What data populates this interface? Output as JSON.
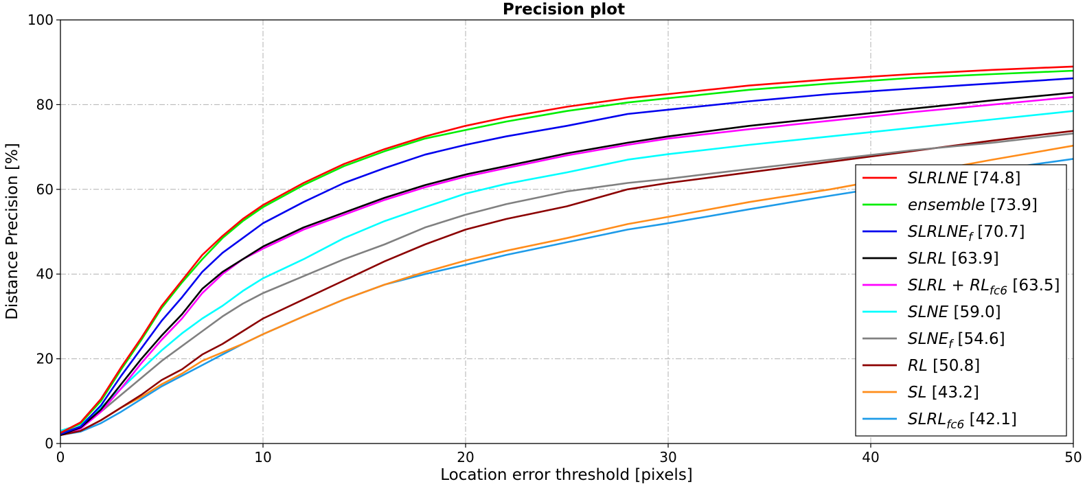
{
  "chart_data": {
    "type": "line",
    "title": "Precision plot",
    "xlabel": "Location error threshold [pixels]",
    "ylabel": "Distance Precision [%]",
    "xlim": [
      0,
      50
    ],
    "ylim": [
      0,
      100
    ],
    "xticks": [
      0,
      10,
      20,
      30,
      40,
      50
    ],
    "yticks": [
      0,
      20,
      40,
      60,
      80,
      100
    ],
    "grid": true,
    "legend_position": "right",
    "x": [
      0,
      1,
      2,
      3,
      4,
      5,
      6,
      7,
      8,
      9,
      10,
      12,
      14,
      16,
      18,
      20,
      22,
      25,
      28,
      30,
      34,
      38,
      42,
      46,
      50
    ],
    "series": [
      {
        "name": "SLRLNE",
        "sub": "",
        "score": "[74.8]",
        "color": "#ff0000",
        "values": [
          2.5,
          5,
          10.5,
          18,
          25,
          32.5,
          38.5,
          44.5,
          49,
          53,
          56.3,
          61.5,
          66,
          69.5,
          72.5,
          75,
          77,
          79.5,
          81.5,
          82.5,
          84.5,
          86,
          87.2,
          88.2,
          89
        ]
      },
      {
        "name": "ensemble",
        "sub": "",
        "score": "[73.9]",
        "color": "#00ee00",
        "values": [
          2.5,
          4.8,
          10,
          17.5,
          24.5,
          32,
          38,
          43.5,
          48.5,
          52.5,
          55.8,
          61,
          65.5,
          69,
          72,
          74,
          76,
          78.5,
          80.5,
          81.5,
          83.5,
          85,
          86.3,
          87.2,
          88
        ]
      },
      {
        "name": "SLRLNE",
        "sub": "f",
        "score": "[70.7]",
        "color": "#0000ee",
        "values": [
          2.2,
          4,
          9,
          16,
          22.5,
          29,
          34.5,
          40.5,
          45,
          48.5,
          52,
          57,
          61.5,
          65,
          68.2,
          70.5,
          72.5,
          75,
          77.8,
          78.8,
          80.8,
          82.5,
          83.8,
          85,
          86.2
        ]
      },
      {
        "name": "SLRL",
        "sub": "",
        "score": "[63.9]",
        "color": "#000000",
        "values": [
          2,
          3.8,
          8,
          14,
          20,
          25.5,
          30.5,
          36.5,
          40.5,
          43.5,
          46.5,
          51,
          54.5,
          58,
          61,
          63.5,
          65.5,
          68.5,
          71,
          72.5,
          75,
          77,
          79,
          81,
          82.8
        ]
      },
      {
        "name": "SLRL + RL",
        "sub": "fc6",
        "score": "[63.5]",
        "color": "#ff00ff",
        "values": [
          2.2,
          3.5,
          7.5,
          13,
          19,
          24.5,
          29.5,
          35.5,
          40,
          43.5,
          46,
          50.5,
          54,
          57.5,
          60.5,
          63,
          65,
          68,
          70.5,
          72,
          74.2,
          76.2,
          78.2,
          80,
          81.8
        ]
      },
      {
        "name": "SLNE",
        "sub": "",
        "score": "[59.0]",
        "color": "#00ffff",
        "values": [
          3,
          4.5,
          8.5,
          13,
          17.5,
          22,
          26,
          29.5,
          32.5,
          36,
          39,
          43.5,
          48.5,
          52.5,
          55.8,
          59,
          61.3,
          64,
          67,
          68.3,
          70.5,
          72.5,
          74.5,
          76.5,
          78.5
        ]
      },
      {
        "name": "SLNE",
        "sub": "f",
        "score": "[54.6]",
        "color": "#808080",
        "values": [
          2.5,
          4,
          7.5,
          11.5,
          15.5,
          19.5,
          23,
          26.5,
          30,
          33,
          35.5,
          39.5,
          43.5,
          47,
          51,
          54,
          56.5,
          59.5,
          61.5,
          62.5,
          64.8,
          67,
          69.2,
          71,
          73.2
        ]
      },
      {
        "name": "RL",
        "sub": "",
        "score": "[50.8]",
        "color": "#8b0000",
        "values": [
          2,
          3,
          5.5,
          8.5,
          11.5,
          15,
          17.5,
          21,
          23.5,
          26.5,
          29.5,
          34,
          38.5,
          43,
          47,
          50.5,
          53,
          56,
          60,
          61.5,
          64,
          66.5,
          69,
          71.5,
          73.8
        ]
      },
      {
        "name": "SL",
        "sub": "",
        "score": "[43.2]",
        "color": "#ff8c1a",
        "values": [
          2,
          3,
          5.5,
          8.5,
          11,
          14,
          16.5,
          19.5,
          21.5,
          23.5,
          25.8,
          30,
          34,
          37.5,
          40.5,
          43.2,
          45.5,
          48.5,
          51.8,
          53.5,
          57,
          60,
          63.5,
          67,
          70.3
        ]
      },
      {
        "name": "SLRL",
        "sub": "fc6",
        "score": "[42.1]",
        "color": "#1e9be8",
        "values": [
          2,
          2.8,
          4.8,
          7.5,
          10.5,
          13.5,
          16,
          18.5,
          21,
          23.5,
          25.8,
          30,
          34,
          37.5,
          40,
          42.2,
          44.5,
          47.5,
          50.5,
          52,
          55.3,
          58.5,
          61.5,
          64.5,
          67.2
        ]
      }
    ]
  }
}
